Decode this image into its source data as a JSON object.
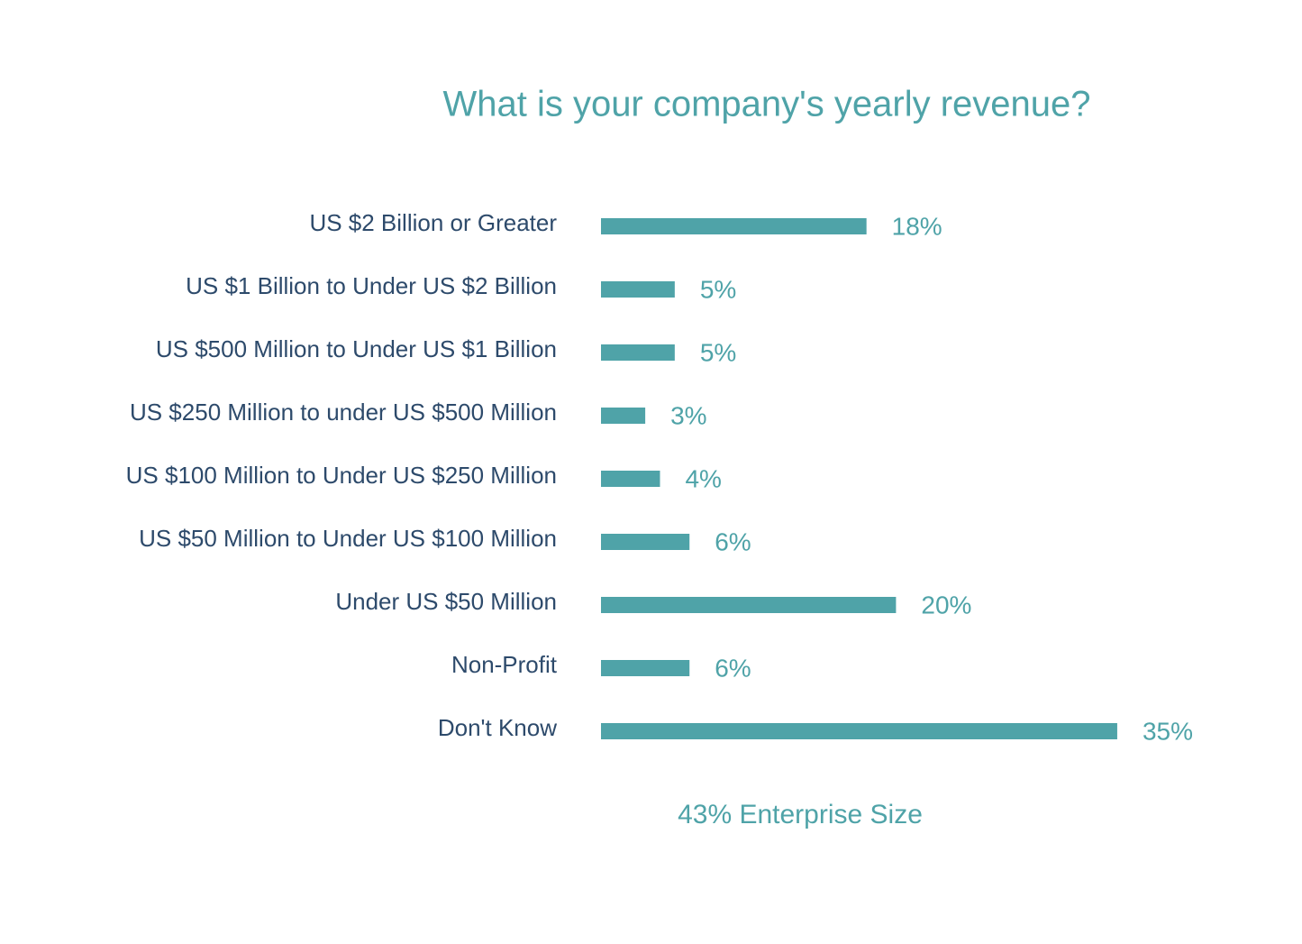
{
  "chart_data": {
    "type": "bar",
    "orientation": "horizontal",
    "title": "What is your company's yearly revenue?",
    "categories": [
      "US $2 Billion or Greater",
      "US $1 Billion to Under US $2 Billion",
      "US $500 Million to Under US $1 Billion",
      "US $250 Million to under US $500 Million",
      "US $100 Million to Under US $250 Million",
      "US $50 Million to Under US $100 Million",
      "Under US $50 Million",
      "Non-Profit",
      "Don't Know"
    ],
    "values": [
      18,
      5,
      5,
      3,
      4,
      6,
      20,
      6,
      35
    ],
    "value_labels": [
      "18%",
      "5%",
      "5%",
      "3%",
      "4%",
      "6%",
      "20%",
      "6%",
      "35%"
    ],
    "color": "#4fa3a8",
    "annotation": "43% Enterprise Size"
  }
}
